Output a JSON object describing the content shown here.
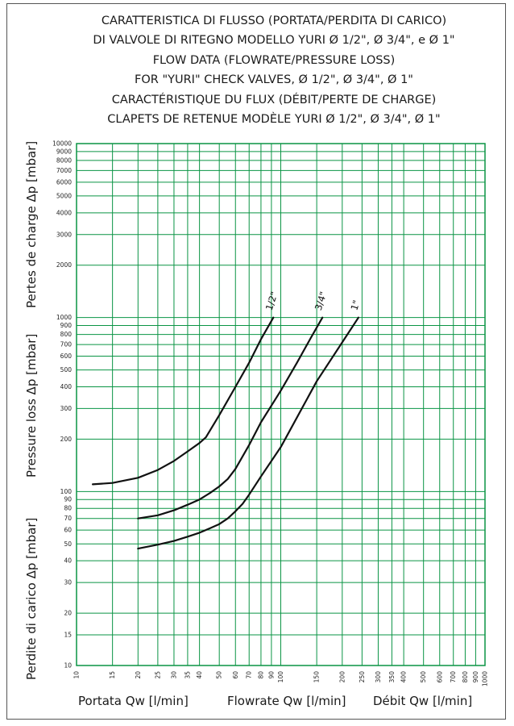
{
  "chart_data": {
    "type": "line",
    "title_lines": [
      "CARATTERISTICA DI FLUSSO (PORTATA/PERDITA DI CARICO)",
      "DI VALVOLE DI RITEGNO MODELLO YURI Ø 1/2\", Ø 3/4\", e Ø 1\"",
      "FLOW DATA (FLOWRATE/PRESSURE LOSS)",
      "FOR \"YURI\" CHECK VALVES, Ø 1/2\", Ø 3/4\", Ø 1\"",
      "CARACTÉRISTIQUE DU FLUX (DÉBIT/PERTE DE CHARGE)",
      "CLAPETS DE RETENUE MODÈLE YURI Ø 1/2\", Ø 3/4\", Ø 1\""
    ],
    "ylabels": [
      "Perdite di carico Δp [mbar]",
      "Pressure loss Δp [mbar]",
      "Pertes de charge Δp [mbar]"
    ],
    "xlabels": [
      "Portata Qw [l/min]",
      "Flowrate Qw [l/min]",
      "Débit Qw [l/min]"
    ],
    "x_scale": "log",
    "y_scale": "log",
    "xlim": [
      10,
      1000
    ],
    "ylim": [
      10,
      10000
    ],
    "xticks": [
      "10",
      "15",
      "20",
      "25",
      "30",
      "35",
      "40",
      "50",
      "60",
      "70",
      "80",
      "90",
      "100",
      "150",
      "200",
      "250",
      "300",
      "350",
      "400",
      "500",
      "600",
      "700",
      "800",
      "900",
      "1000"
    ],
    "yticks": [
      "10",
      "15",
      "20",
      "30",
      "40",
      "50",
      "60",
      "70",
      "80",
      "90",
      "100",
      "200",
      "300",
      "400",
      "500",
      "600",
      "700",
      "800",
      "900",
      "1000",
      "2000",
      "3000",
      "4000",
      "5000",
      "6000",
      "7000",
      "8000",
      "9000",
      "10000"
    ],
    "grid": true,
    "grid_color": "#0a9444",
    "line_color": "#111111",
    "series": [
      {
        "name": "1/2\"",
        "x": [
          12,
          15,
          20,
          25,
          30,
          35,
          40,
          43,
          50,
          60,
          70,
          80,
          92
        ],
        "y": [
          110,
          112,
          120,
          133,
          150,
          170,
          190,
          205,
          275,
          400,
          550,
          750,
          1000
        ]
      },
      {
        "name": "3/4\"",
        "x": [
          20,
          25,
          30,
          35,
          40,
          45,
          50,
          55,
          60,
          70,
          80,
          100,
          120,
          140,
          160
        ],
        "y": [
          70,
          73,
          78,
          84,
          90,
          98,
          107,
          118,
          135,
          185,
          250,
          380,
          550,
          760,
          1000
        ]
      },
      {
        "name": "1\"",
        "x": [
          20,
          25,
          30,
          35,
          40,
          45,
          50,
          55,
          60,
          65,
          70,
          80,
          100,
          150,
          200,
          240
        ],
        "y": [
          47,
          49.5,
          52,
          55,
          58,
          61.5,
          65,
          70,
          77,
          85,
          96,
          122,
          180,
          430,
          720,
          1000
        ]
      }
    ]
  }
}
